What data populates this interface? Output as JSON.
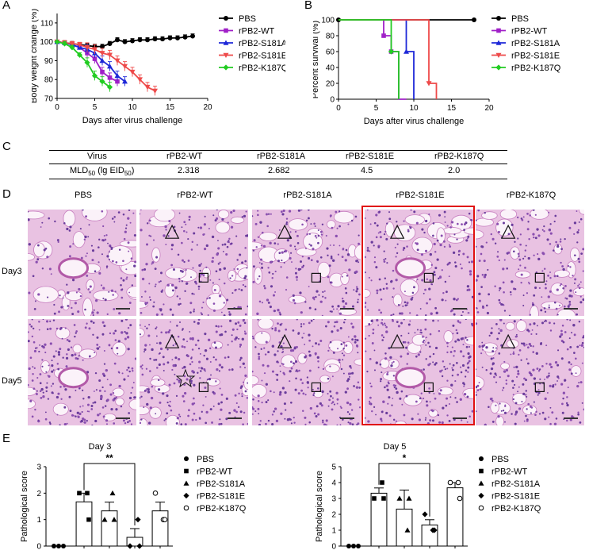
{
  "panels": {
    "A": "A",
    "B": "B",
    "C": "C",
    "D": "D",
    "E": "E"
  },
  "legend_strains": [
    "PBS",
    "rPB2-WT",
    "rPB2-S181A",
    "rPB2-S181E",
    "rPB2-K187Q"
  ],
  "colors": {
    "PBS": "#000000",
    "rPB2-WT": "#a020c8",
    "rPB2-S181A": "#1e28d8",
    "rPB2-S181E": "#ee4a4a",
    "rPB2-K187Q": "#22cc22",
    "highlight": "#e01010"
  },
  "chart_data": [
    {
      "id": "A",
      "type": "line",
      "xlabel": "Days after virus challenge",
      "ylabel": "Body weight change (%)",
      "xlim": [
        0,
        20
      ],
      "ylim": [
        70,
        115
      ],
      "xticks": [
        0,
        5,
        10,
        15,
        20
      ],
      "yticks": [
        70,
        80,
        90,
        100,
        110
      ],
      "series": [
        {
          "name": "PBS",
          "x": [
            0,
            1,
            2,
            3,
            4,
            5,
            6,
            7,
            8,
            9,
            10,
            11,
            12,
            13,
            14,
            15,
            16,
            17,
            18
          ],
          "y": [
            100,
            99.5,
            99,
            98.5,
            98,
            97.5,
            97.5,
            99,
            101,
            100,
            100.5,
            101,
            101,
            101.5,
            101.5,
            102,
            102,
            102.5,
            103
          ]
        },
        {
          "name": "rPB2-WT",
          "x": [
            0,
            1,
            2,
            3,
            4,
            5,
            6,
            7,
            8
          ],
          "y": [
            100,
            99.5,
            98.5,
            97,
            94,
            91,
            84,
            81,
            79
          ]
        },
        {
          "name": "rPB2-S181A",
          "x": [
            0,
            1,
            2,
            3,
            4,
            5,
            6,
            7,
            8,
            9
          ],
          "y": [
            100,
            99.5,
            98.5,
            97,
            96,
            94,
            90,
            87,
            82,
            79
          ]
        },
        {
          "name": "rPB2-S181E",
          "x": [
            0,
            1,
            2,
            3,
            4,
            5,
            6,
            7,
            8,
            9,
            10,
            11,
            12,
            13
          ],
          "y": [
            100,
            99.5,
            99,
            98.5,
            97,
            96,
            94,
            93,
            90,
            87,
            84,
            80,
            76,
            74
          ]
        },
        {
          "name": "rPB2-K187Q",
          "x": [
            0,
            1,
            2,
            3,
            4,
            5,
            6,
            7
          ],
          "y": [
            100,
            99,
            97,
            93,
            89,
            82,
            79,
            76
          ]
        }
      ]
    },
    {
      "id": "B",
      "type": "line",
      "xlabel": "Days after virus challenge",
      "ylabel": "Percent survival (%)",
      "xlim": [
        0,
        20
      ],
      "ylim": [
        0,
        100
      ],
      "xticks": [
        0,
        5,
        10,
        15,
        20
      ],
      "yticks": [
        0,
        20,
        40,
        60,
        80,
        100
      ],
      "series": [
        {
          "name": "PBS",
          "x": [
            0,
            18
          ],
          "y": [
            100,
            100
          ]
        },
        {
          "name": "rPB2-WT",
          "x": [
            0,
            6,
            6,
            7,
            7,
            8,
            8,
            9
          ],
          "y": [
            100,
            100,
            80,
            80,
            60,
            60,
            0,
            0
          ]
        },
        {
          "name": "rPB2-S181A",
          "x": [
            0,
            9,
            9,
            10,
            10
          ],
          "y": [
            100,
            100,
            60,
            60,
            0
          ]
        },
        {
          "name": "rPB2-S181E",
          "x": [
            0,
            12,
            12,
            13,
            13
          ],
          "y": [
            100,
            100,
            20,
            20,
            0
          ]
        },
        {
          "name": "rPB2-K187Q",
          "x": [
            0,
            7,
            7,
            8,
            8
          ],
          "y": [
            100,
            100,
            60,
            60,
            0
          ]
        }
      ]
    },
    {
      "id": "C",
      "type": "table",
      "headers": [
        "Virus",
        "rPB2-WT",
        "rPB2-S181A",
        "rPB2-S181E",
        "rPB2-K187Q"
      ],
      "row_label": "MLD",
      "row_label_sub": "50",
      "row_label_tail": " (lg EID",
      "row_label_sub2": "50",
      "row_label_end": ")",
      "values": [
        "2.318",
        "2.682",
        "4.5",
        "2.0"
      ]
    },
    {
      "id": "E1",
      "type": "bar",
      "title": "Day 3",
      "ylabel": "Pathological score",
      "categories": [
        "PBS",
        "rPB2-WT",
        "rPB2-S181A",
        "rPB2-S181E",
        "rPB2-K187Q"
      ],
      "values": [
        0,
        1.67,
        1.33,
        0.33,
        1.33
      ],
      "errors": [
        0,
        0.33,
        0.33,
        0.33,
        0.33
      ],
      "points": [
        [
          0,
          0,
          0
        ],
        [
          2,
          2,
          1
        ],
        [
          1,
          2,
          1
        ],
        [
          0,
          1,
          0
        ],
        [
          2,
          1,
          1
        ]
      ],
      "ylim": [
        0,
        3
      ],
      "yticks": [
        0,
        1,
        2,
        3
      ],
      "significance": {
        "from": 1,
        "to": 3,
        "label": "**"
      }
    },
    {
      "id": "E2",
      "type": "bar",
      "title": "Day 5",
      "ylabel": "Pathological score",
      "categories": [
        "PBS",
        "rPB2-WT",
        "rPB2-S181A",
        "rPB2-S181E",
        "rPB2-K187Q"
      ],
      "values": [
        0,
        3.33,
        2.33,
        1.33,
        3.67
      ],
      "errors": [
        0,
        0.33,
        1.2,
        0.33,
        0.33
      ],
      "points": [
        [
          0,
          0,
          0
        ],
        [
          3,
          4,
          3
        ],
        [
          3,
          1,
          3
        ],
        [
          2,
          1,
          1
        ],
        [
          4,
          4,
          3
        ]
      ],
      "ylim": [
        0,
        5
      ],
      "yticks": [
        0,
        1,
        2,
        3,
        4,
        5
      ],
      "significance": {
        "from": 1,
        "to": 3,
        "label": "*"
      }
    }
  ],
  "histology": {
    "columns": [
      "PBS",
      "rPB2-WT",
      "rPB2-S181A",
      "rPB2-S181E",
      "rPB2-K187Q"
    ],
    "rows": [
      "Day3",
      "Day5"
    ]
  }
}
